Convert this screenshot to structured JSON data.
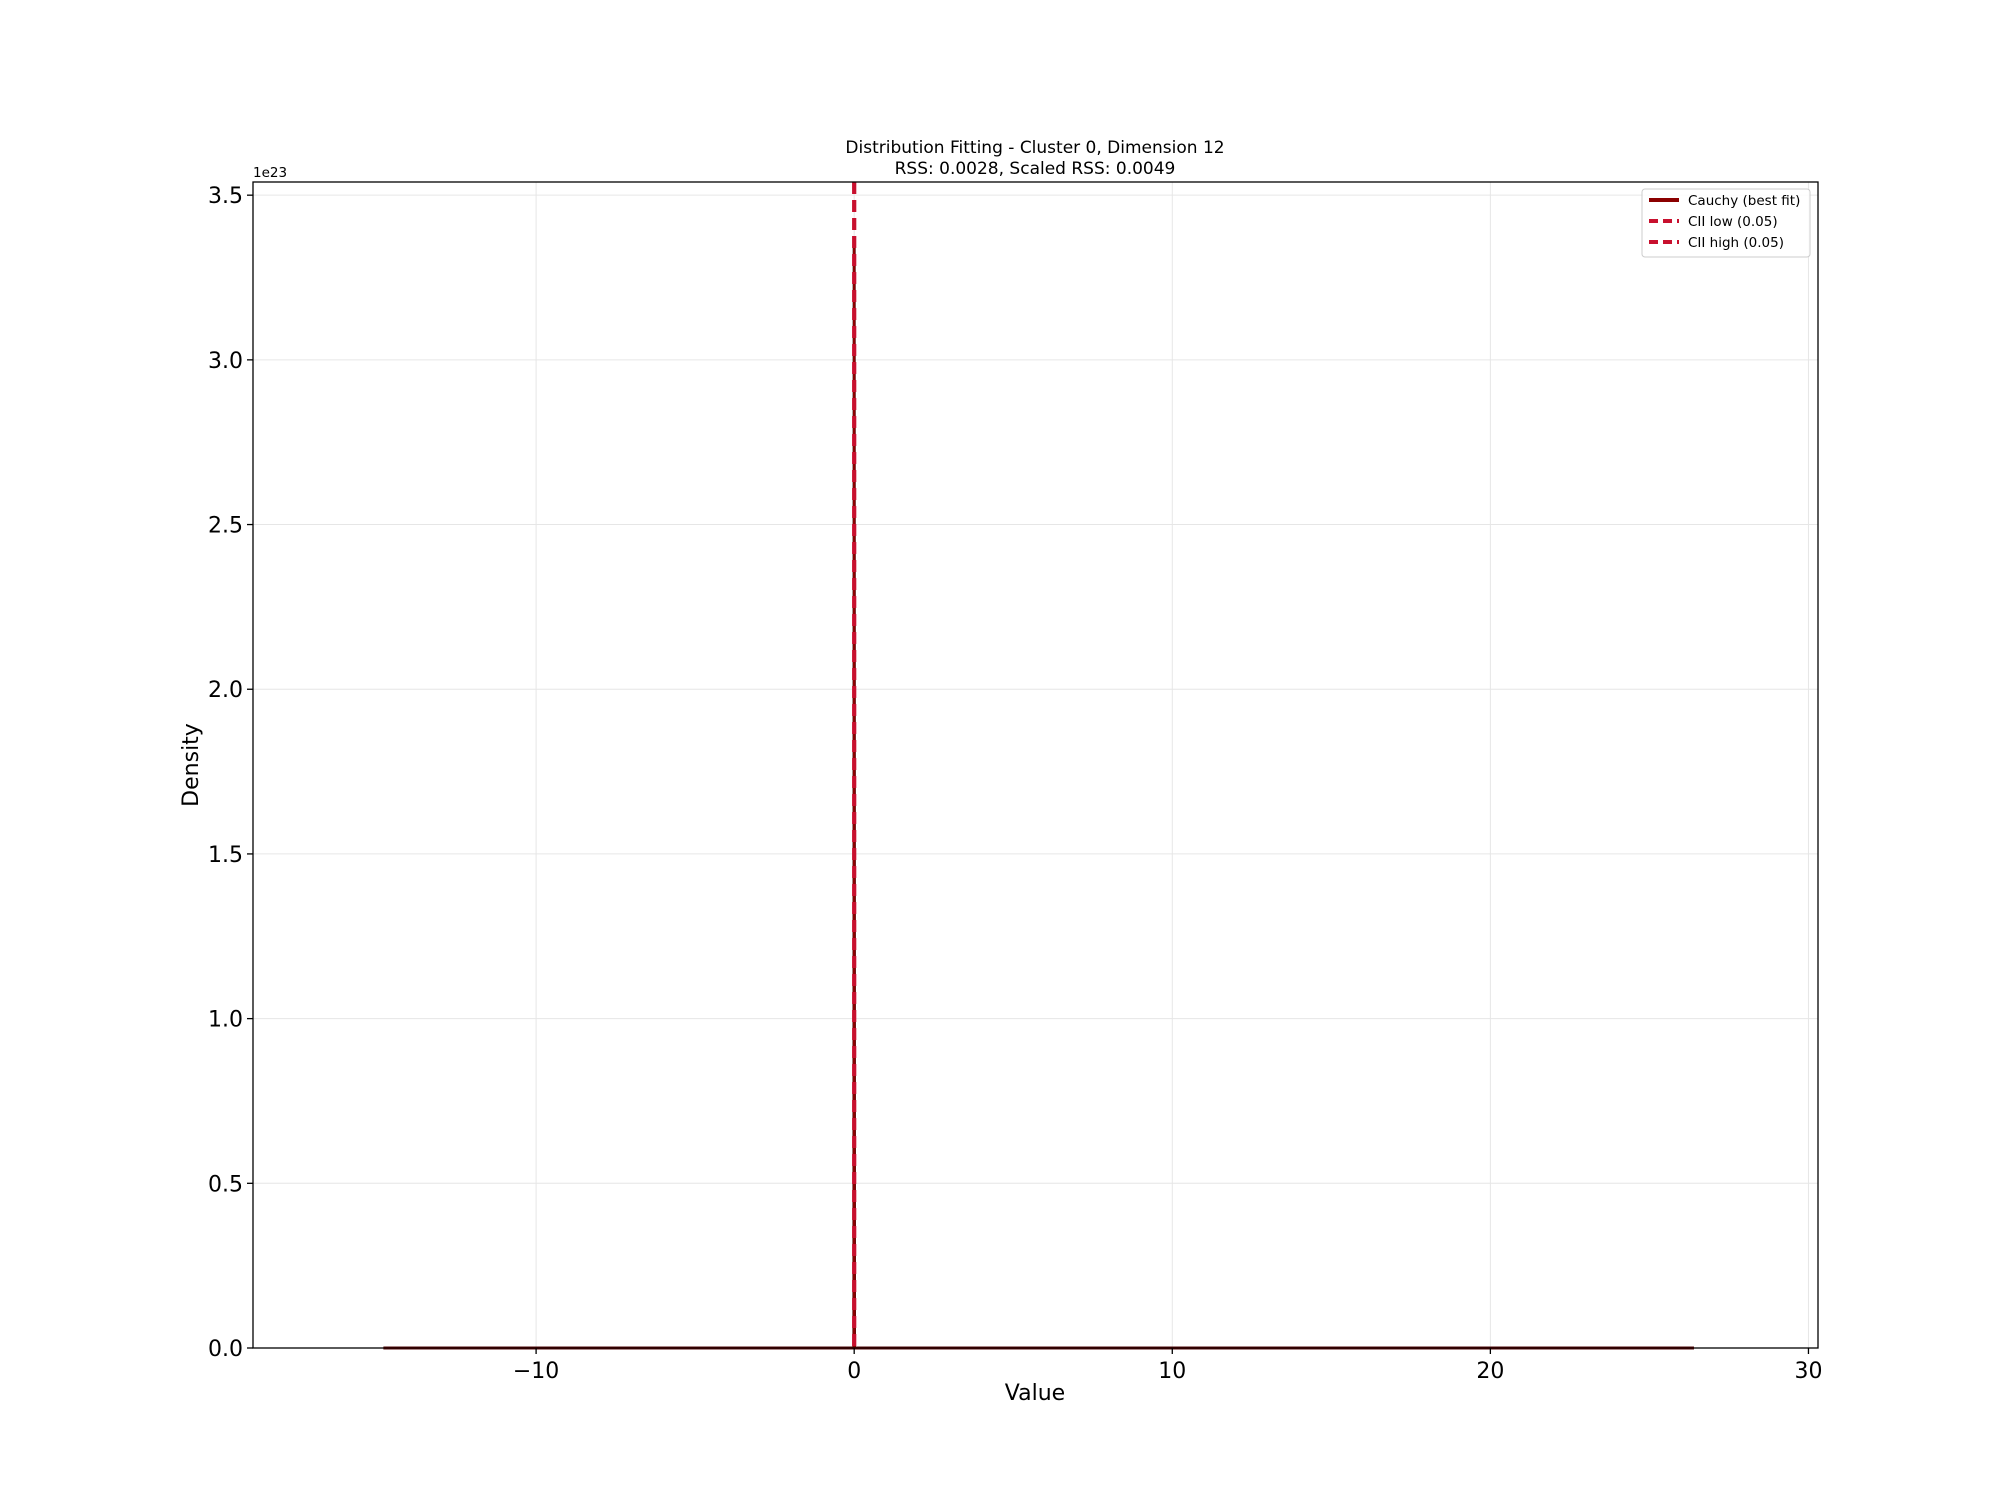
{
  "chart_data": {
    "type": "line",
    "title": "Distribution Fitting - Cluster 0, Dimension 12",
    "subtitle": "RSS: 0.0028, Scaled RSS: 0.0049",
    "xlabel": "Value",
    "ylabel": "Density",
    "xlim": [
      -18.9,
      30.3
    ],
    "ylim": [
      0,
      3.54
    ],
    "x_ticks": [
      -10,
      0,
      10,
      20,
      30
    ],
    "x_tick_labels": [
      "−10",
      "0",
      "10",
      "20",
      "30"
    ],
    "y_ticks": [
      0,
      0.5,
      1.0,
      1.5,
      2.0,
      2.5,
      3.0,
      3.5
    ],
    "y_tick_labels": [
      "0.0",
      "0.5",
      "1.0",
      "1.5",
      "2.0",
      "2.5",
      "3.0",
      "3.5"
    ],
    "y_offset_label": "1e23",
    "grid": true,
    "legend_position": "top-right",
    "series": [
      {
        "name": "Cauchy (best fit)",
        "color": "#8b0000",
        "style": "solid",
        "x": [
          -14.8,
          -0.05,
          -0.01,
          0.0,
          0.01,
          0.05,
          26.4
        ],
        "y": [
          0.0,
          0.0,
          0.0,
          3.37,
          0.0,
          0.0,
          0.0
        ]
      },
      {
        "name": "CII low (0.05)",
        "color": "#c8102e",
        "style": "dashed",
        "x_value": 0.0
      },
      {
        "name": "CII high (0.05)",
        "color": "#c8102e",
        "style": "dashed",
        "x_value": 0.0
      }
    ]
  }
}
